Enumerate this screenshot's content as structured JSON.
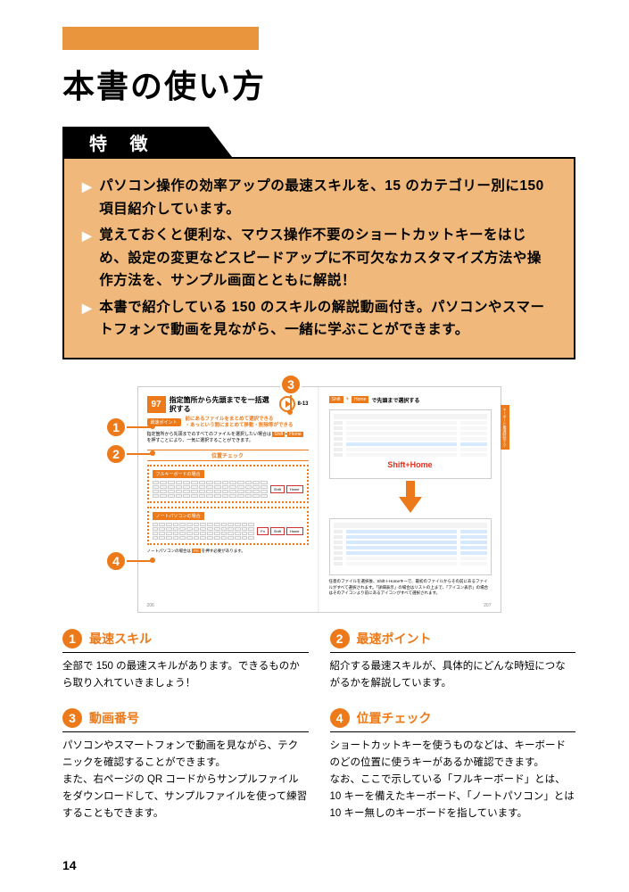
{
  "colors": {
    "accent": "#ec7a1a",
    "feature_bg": "#f0b87a",
    "black": "#000000"
  },
  "title": "本書の使い方",
  "section_label": "特 徴",
  "features": [
    "パソコン操作の効率アップの最速スキルを、15 のカテゴリー別に150 項目紹介しています。",
    "覚えておくと便利な、マウス操作不要のショートカットキーをはじめ、設定の変更などスピードアップに不可欠なカスタマイズ方法や操作方法を、サンプル画面とともに解説！",
    "本書で紹介している 150 のスキルの解説動画付き。パソコンやスマートフォンで動画を見ながら、一緒に学ぶことができます。"
  ],
  "mini_left": {
    "num": "97",
    "title": "指定箇所から先頭までを一括選択する",
    "video_code": "8-13",
    "tag": "最速ポイント",
    "tag_desc_l1": "前にあるファイルをまとめて選択できる",
    "tag_desc_l2": "・あっという間にまとめて移動・削除等ができる",
    "body_pre": "指定箇所から先頭までのすべてのファイルを選択したい場合は",
    "body_key1": "Shift",
    "body_mid": "+",
    "body_key2": "Home",
    "body_post": "を押すことにより、一気に選択することができます。",
    "pos_label": "位置チェック",
    "kb1_title": "フルキーボードの場合",
    "kb1_keys": [
      "Shift",
      "Home"
    ],
    "kb2_title": "ノートパソコンの場合",
    "kb2_keys": [
      "Fn",
      "Shift",
      "Home"
    ],
    "footnote_pre": "ノートパソコンの場合は",
    "footnote_key": "Fn",
    "footnote_post": "を押す必要があります。",
    "pgnum": "206"
  },
  "mini_right": {
    "hdr_tag1": "Shift",
    "hdr_plus": "+",
    "hdr_tag2": "Home",
    "hdr_title": "で先頭まで選択する",
    "shortcut": "Shift+Home",
    "caption": "任意のファイルを選択後、Shift＋Homeキーで、最初のファイルからその前にあるファイルがすべて選択されます。「詳細表示」の場合はリストの上まで、「アイコン表示」の場合はそのアイコンより前にあるアイコンがすべて選択されます。",
    "side_tab": "キーボード最速時短テク",
    "pgnum": "207"
  },
  "callouts": {
    "1": "1",
    "2": "2",
    "3": "3",
    "4": "4"
  },
  "legend": [
    {
      "num": "1",
      "title": "最速スキル",
      "body": "全部で 150 の最速スキルがあります。できるものから取り入れていきましょう！"
    },
    {
      "num": "2",
      "title": "最速ポイント",
      "body": "紹介する最速スキルが、具体的にどんな時短につながるかを解説しています。"
    },
    {
      "num": "3",
      "title": "動画番号",
      "body": "パソコンやスマートフォンで動画を見ながら、テクニックを確認することができます。\nまた、右ページの QR コードからサンプルファイルをダウンロードして、サンプルファイルを使って練習することもできます。"
    },
    {
      "num": "4",
      "title": "位置チェック",
      "body": "ショートカットキーを使うものなどは、キーボードのどの位置に使うキーがあるか確認できます。\nなお、ここで示している「フルキーボード」とは、10 キーを備えたキーボード、「ノートパソコン」とは 10 キー無しのキーボードを指しています。"
    }
  ],
  "page_number": "14"
}
